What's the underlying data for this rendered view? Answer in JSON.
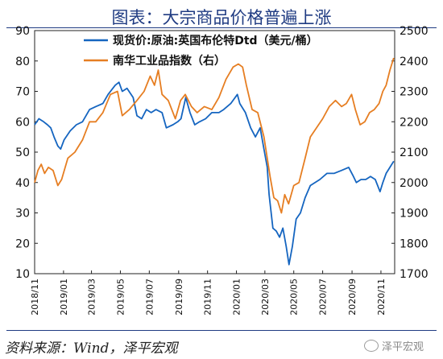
{
  "title": "图表：大宗商品价格普遍上涨",
  "source": "资料来源：Wind，泽平宏观",
  "watermark": "泽平宏观",
  "chart_data": {
    "type": "line",
    "x_tick_labels": [
      "2018/11",
      "2019/01",
      "2019/03",
      "2019/05",
      "2019/07",
      "2019/09",
      "2019/11",
      "2020/01",
      "2020/03",
      "2020/05",
      "2020/07",
      "2020/09",
      "2020/11"
    ],
    "x_range": [
      "2018-11-01",
      "2020-11-30"
    ],
    "y_left": {
      "ticks": [
        10,
        20,
        30,
        40,
        50,
        60,
        70,
        80,
        90
      ],
      "lim": [
        10,
        90
      ]
    },
    "y_right": {
      "ticks": [
        1700,
        1800,
        1900,
        2000,
        2100,
        2200,
        2300,
        2400,
        2500
      ],
      "lim": [
        1700,
        2500
      ]
    },
    "legend_position": "top",
    "grid": false,
    "series": [
      {
        "name": "现货价:原油:英国布伦特Dtd（美元/桶）",
        "axis": "left",
        "color": "#1565c0",
        "points": [
          [
            "2018-11-01",
            59
          ],
          [
            "2018-11-10",
            61
          ],
          [
            "2018-11-20",
            60
          ],
          [
            "2018-11-28",
            59
          ],
          [
            "2018-12-05",
            58
          ],
          [
            "2018-12-12",
            55
          ],
          [
            "2018-12-20",
            52
          ],
          [
            "2018-12-26",
            51
          ],
          [
            "2019-01-02",
            54
          ],
          [
            "2019-01-15",
            57
          ],
          [
            "2019-01-28",
            59
          ],
          [
            "2019-02-10",
            60
          ],
          [
            "2019-02-25",
            64
          ],
          [
            "2019-03-10",
            65
          ],
          [
            "2019-03-25",
            66
          ],
          [
            "2019-04-05",
            69
          ],
          [
            "2019-04-20",
            72
          ],
          [
            "2019-04-28",
            73
          ],
          [
            "2019-05-05",
            70
          ],
          [
            "2019-05-15",
            71
          ],
          [
            "2019-05-28",
            68
          ],
          [
            "2019-06-05",
            62
          ],
          [
            "2019-06-15",
            61
          ],
          [
            "2019-06-25",
            64
          ],
          [
            "2019-07-05",
            63
          ],
          [
            "2019-07-15",
            64
          ],
          [
            "2019-07-28",
            63
          ],
          [
            "2019-08-06",
            58
          ],
          [
            "2019-08-20",
            59
          ],
          [
            "2019-08-30",
            60
          ],
          [
            "2019-09-06",
            61
          ],
          [
            "2019-09-16",
            68
          ],
          [
            "2019-09-25",
            63
          ],
          [
            "2019-10-05",
            59
          ],
          [
            "2019-10-15",
            60
          ],
          [
            "2019-10-28",
            61
          ],
          [
            "2019-11-10",
            63
          ],
          [
            "2019-11-25",
            63
          ],
          [
            "2019-12-05",
            64
          ],
          [
            "2019-12-20",
            66
          ],
          [
            "2020-01-03",
            69
          ],
          [
            "2020-01-08",
            66
          ],
          [
            "2020-01-20",
            63
          ],
          [
            "2020-01-31",
            58
          ],
          [
            "2020-02-10",
            55
          ],
          [
            "2020-02-20",
            58
          ],
          [
            "2020-02-28",
            51
          ],
          [
            "2020-03-06",
            45
          ],
          [
            "2020-03-10",
            36
          ],
          [
            "2020-03-18",
            25
          ],
          [
            "2020-03-25",
            24
          ],
          [
            "2020-04-01",
            22
          ],
          [
            "2020-04-08",
            25
          ],
          [
            "2020-04-15",
            19
          ],
          [
            "2020-04-21",
            13
          ],
          [
            "2020-04-28",
            19
          ],
          [
            "2020-05-06",
            28
          ],
          [
            "2020-05-15",
            30
          ],
          [
            "2020-05-25",
            35
          ],
          [
            "2020-06-05",
            39
          ],
          [
            "2020-06-15",
            40
          ],
          [
            "2020-06-25",
            41
          ],
          [
            "2020-07-10",
            43
          ],
          [
            "2020-07-25",
            43
          ],
          [
            "2020-08-10",
            44
          ],
          [
            "2020-08-25",
            45
          ],
          [
            "2020-09-04",
            42
          ],
          [
            "2020-09-10",
            40
          ],
          [
            "2020-09-20",
            41
          ],
          [
            "2020-09-30",
            41
          ],
          [
            "2020-10-10",
            42
          ],
          [
            "2020-10-20",
            41
          ],
          [
            "2020-10-30",
            37
          ],
          [
            "2020-11-05",
            40
          ],
          [
            "2020-11-12",
            43
          ],
          [
            "2020-11-20",
            45
          ],
          [
            "2020-11-28",
            47
          ]
        ]
      },
      {
        "name": "南华工业品指数（右）",
        "axis": "right",
        "color": "#e67e22",
        "points": [
          [
            "2018-11-01",
            2000
          ],
          [
            "2018-11-08",
            2040
          ],
          [
            "2018-11-15",
            2060
          ],
          [
            "2018-11-22",
            2030
          ],
          [
            "2018-11-30",
            2050
          ],
          [
            "2018-12-10",
            2040
          ],
          [
            "2018-12-20",
            1990
          ],
          [
            "2018-12-28",
            2010
          ],
          [
            "2019-01-10",
            2080
          ],
          [
            "2019-01-25",
            2100
          ],
          [
            "2019-02-10",
            2140
          ],
          [
            "2019-02-25",
            2200
          ],
          [
            "2019-03-10",
            2200
          ],
          [
            "2019-03-25",
            2230
          ],
          [
            "2019-04-10",
            2290
          ],
          [
            "2019-04-25",
            2300
          ],
          [
            "2019-05-05",
            2220
          ],
          [
            "2019-05-20",
            2240
          ],
          [
            "2019-06-05",
            2270
          ],
          [
            "2019-06-20",
            2300
          ],
          [
            "2019-07-03",
            2350
          ],
          [
            "2019-07-12",
            2320
          ],
          [
            "2019-07-20",
            2370
          ],
          [
            "2019-07-28",
            2290
          ],
          [
            "2019-08-10",
            2270
          ],
          [
            "2019-08-25",
            2210
          ],
          [
            "2019-09-05",
            2270
          ],
          [
            "2019-09-15",
            2290
          ],
          [
            "2019-09-28",
            2250
          ],
          [
            "2019-10-10",
            2230
          ],
          [
            "2019-10-25",
            2250
          ],
          [
            "2019-11-10",
            2240
          ],
          [
            "2019-11-25",
            2280
          ],
          [
            "2019-12-10",
            2340
          ],
          [
            "2019-12-25",
            2380
          ],
          [
            "2020-01-05",
            2390
          ],
          [
            "2020-01-14",
            2380
          ],
          [
            "2020-01-22",
            2320
          ],
          [
            "2020-02-03",
            2240
          ],
          [
            "2020-02-15",
            2230
          ],
          [
            "2020-02-28",
            2150
          ],
          [
            "2020-03-06",
            2080
          ],
          [
            "2020-03-12",
            2020
          ],
          [
            "2020-03-20",
            1950
          ],
          [
            "2020-03-28",
            1940
          ],
          [
            "2020-04-05",
            1900
          ],
          [
            "2020-04-12",
            1960
          ],
          [
            "2020-04-20",
            1930
          ],
          [
            "2020-05-01",
            1990
          ],
          [
            "2020-05-12",
            2000
          ],
          [
            "2020-05-25",
            2080
          ],
          [
            "2020-06-05",
            2150
          ],
          [
            "2020-06-18",
            2180
          ],
          [
            "2020-07-01",
            2210
          ],
          [
            "2020-07-15",
            2250
          ],
          [
            "2020-07-28",
            2270
          ],
          [
            "2020-08-10",
            2250
          ],
          [
            "2020-08-20",
            2260
          ],
          [
            "2020-08-31",
            2290
          ],
          [
            "2020-09-08",
            2240
          ],
          [
            "2020-09-18",
            2190
          ],
          [
            "2020-09-28",
            2200
          ],
          [
            "2020-10-08",
            2230
          ],
          [
            "2020-10-18",
            2240
          ],
          [
            "2020-10-28",
            2260
          ],
          [
            "2020-11-05",
            2300
          ],
          [
            "2020-11-12",
            2320
          ],
          [
            "2020-11-20",
            2370
          ],
          [
            "2020-11-28",
            2410
          ]
        ]
      }
    ]
  }
}
